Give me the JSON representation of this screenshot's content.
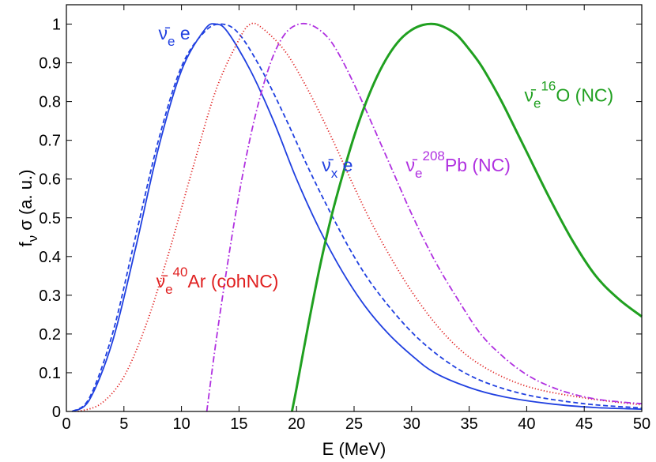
{
  "chart_data": {
    "type": "line",
    "title": "",
    "xlabel": "E (MeV)",
    "ylabel": "f",
    "ylabel_sub": "ν",
    "ylabel_rest": " σ (a. u.)",
    "xlim": [
      0,
      50
    ],
    "ylim": [
      0,
      1.05
    ],
    "grid": false,
    "x_ticks": [
      0,
      5,
      10,
      15,
      20,
      25,
      30,
      35,
      40,
      45,
      50
    ],
    "x_tick_labels": [
      "0",
      "5",
      "10",
      "15",
      "20",
      "25",
      "30",
      "35",
      "40",
      "45",
      "50"
    ],
    "y_ticks": [
      0,
      0.1,
      0.2,
      0.3,
      0.4,
      0.5,
      0.6,
      0.7,
      0.8,
      0.9,
      1
    ],
    "y_tick_labels": [
      "0",
      "0.1",
      "0.2",
      "0.3",
      "0.4",
      "0.5",
      "0.6",
      "0.7",
      "0.8",
      "0.9",
      "1"
    ],
    "series": [
      {
        "name": "ν̄e e",
        "color": "#2040e0",
        "style": "solid",
        "width": "thin",
        "x": [
          0.5,
          2,
          4,
          6,
          8,
          10,
          12,
          13,
          14,
          16,
          18,
          20,
          22,
          24,
          26,
          28,
          30,
          32,
          35,
          38,
          42,
          46,
          50
        ],
        "y": [
          0.0,
          0.03,
          0.18,
          0.42,
          0.68,
          0.88,
          0.985,
          1.0,
          0.98,
          0.88,
          0.75,
          0.6,
          0.47,
          0.36,
          0.27,
          0.2,
          0.145,
          0.1,
          0.062,
          0.038,
          0.02,
          0.01,
          0.006
        ]
      },
      {
        "name": "ν̄x e",
        "color": "#2040e0",
        "style": "dashed",
        "width": "thin",
        "x": [
          0.5,
          2,
          4,
          6,
          8,
          10,
          12,
          13.5,
          15,
          17,
          19,
          21,
          23,
          25,
          27,
          30,
          33,
          36,
          40,
          45,
          50
        ],
        "y": [
          0.0,
          0.035,
          0.2,
          0.45,
          0.7,
          0.89,
          0.98,
          1.0,
          0.975,
          0.88,
          0.76,
          0.63,
          0.51,
          0.4,
          0.31,
          0.205,
          0.13,
          0.08,
          0.043,
          0.02,
          0.009
        ]
      },
      {
        "name": "ν̄e 40Ar (cohNC)",
        "color": "#e02020",
        "style": "dotted",
        "width": "thin",
        "x": [
          1,
          3,
          5,
          7,
          9,
          11,
          13,
          15,
          16,
          17,
          19,
          21,
          23,
          25,
          27,
          30,
          33,
          36,
          40,
          45,
          50
        ],
        "y": [
          0.0,
          0.02,
          0.09,
          0.23,
          0.42,
          0.63,
          0.83,
          0.96,
          1.0,
          0.99,
          0.93,
          0.83,
          0.71,
          0.58,
          0.46,
          0.31,
          0.195,
          0.12,
          0.065,
          0.035,
          0.017
        ]
      },
      {
        "name": "ν̄e 208Pb (NC)",
        "color": "#b030e0",
        "style": "dashdot",
        "width": "thin",
        "x": [
          12.2,
          13,
          14,
          15,
          16,
          17,
          18,
          19,
          20,
          21,
          22,
          23,
          24,
          25,
          26,
          28,
          30,
          32,
          34,
          36,
          38,
          40,
          42,
          44,
          46,
          48,
          50
        ],
        "y": [
          0.0,
          0.18,
          0.38,
          0.56,
          0.71,
          0.83,
          0.92,
          0.975,
          0.998,
          1.0,
          0.985,
          0.955,
          0.905,
          0.845,
          0.78,
          0.645,
          0.51,
          0.39,
          0.29,
          0.2,
          0.14,
          0.095,
          0.065,
          0.045,
          0.032,
          0.025,
          0.02
        ]
      },
      {
        "name": "ν̄e 16O (NC)",
        "color": "#20a020",
        "style": "solid",
        "width": "thick",
        "x": [
          19.6,
          20,
          21,
          22,
          23,
          24,
          25,
          26,
          27,
          28,
          29,
          30,
          31,
          32,
          33,
          34,
          35,
          36,
          37,
          38,
          39,
          40,
          42,
          44,
          46,
          48,
          50
        ],
        "y": [
          0.0,
          0.06,
          0.22,
          0.37,
          0.5,
          0.61,
          0.71,
          0.795,
          0.865,
          0.92,
          0.96,
          0.985,
          0.998,
          1.0,
          0.99,
          0.97,
          0.935,
          0.895,
          0.845,
          0.79,
          0.73,
          0.67,
          0.55,
          0.44,
          0.35,
          0.29,
          0.245
        ]
      }
    ],
    "annotations": [
      {
        "prefix": "ν̄",
        "sub": "e",
        "sup": "",
        "suffix": " e",
        "color": "#2040e0",
        "at": [
          8,
          0.96
        ]
      },
      {
        "prefix": "ν̄",
        "sub": "x",
        "sup": "",
        "suffix": " e",
        "color": "#2040e0",
        "at": [
          22.2,
          0.62
        ]
      },
      {
        "prefix": "ν̄",
        "sub": "e",
        "sup": "40",
        "suffix": "Ar (cohNC)",
        "color": "#e02020",
        "at": [
          7.8,
          0.32
        ]
      },
      {
        "prefix": "ν̄",
        "sub": "e",
        "sup": "208",
        "suffix": "Pb (NC)",
        "color": "#b030e0",
        "at": [
          29.5,
          0.62
        ]
      },
      {
        "prefix": "ν̄",
        "sub": "e",
        "sup": "16",
        "suffix": "O (NC)",
        "color": "#20a020",
        "at": [
          39.8,
          0.8
        ]
      }
    ]
  }
}
